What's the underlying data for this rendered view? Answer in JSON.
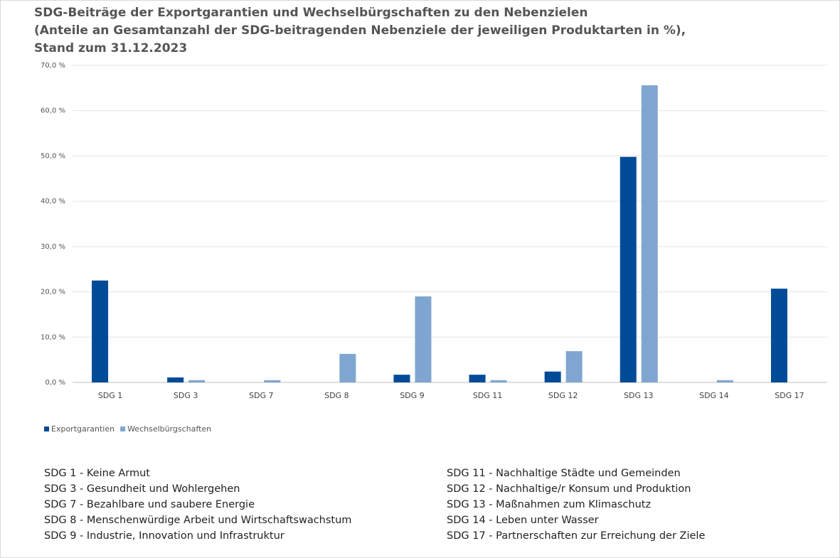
{
  "chart_data": {
    "type": "bar",
    "title": [
      "SDG-Beiträge der Exportgarantien und Wechselbürgschaften zu den Nebenzielen",
      "(Anteile an Gesamtanzahl der SDG-beitragenden Nebenziele der jeweiligen Produktarten in %),",
      "Stand zum 31.12.2023"
    ],
    "categories": [
      "SDG 1",
      "SDG 3",
      "SDG 7",
      "SDG 8",
      "SDG 9",
      "SDG 11",
      "SDG 12",
      "SDG 13",
      "SDG 14",
      "SDG 17"
    ],
    "series": [
      {
        "name": "Exportgarantien",
        "color": "#004b97",
        "values": [
          22.5,
          1.1,
          0,
          0,
          1.7,
          1.7,
          2.4,
          49.8,
          0,
          20.7
        ]
      },
      {
        "name": "Wechselbürgschaften",
        "color": "#7fa6d0",
        "values": [
          0,
          0.5,
          0.5,
          6.3,
          19.0,
          0.5,
          6.9,
          65.6,
          0.5,
          0
        ]
      }
    ],
    "ylim": [
      0,
      70
    ],
    "yticks": [
      {
        "value": 0,
        "label": "0,0 %"
      },
      {
        "value": 10,
        "label": "10,0 %"
      },
      {
        "value": 20,
        "label": "20,0 %"
      },
      {
        "value": 30,
        "label": "30,0 %"
      },
      {
        "value": 40,
        "label": "40,0 %"
      },
      {
        "value": 50,
        "label": "50,0 %"
      },
      {
        "value": 60,
        "label": "60,0 %"
      },
      {
        "value": 70,
        "label": "70,0 %"
      }
    ],
    "grid": true,
    "legend": "bottom-left",
    "annotations": [
      "SDG 1 - Keine Armut",
      "SDG 3 - Gesundheit und Wohlergehen",
      "SDG 7 - Bezahlbare und saubere Energie",
      "SDG 8 - Menschenwürdige Arbeit und Wirtschaftswachstum",
      "SDG 9 - Industrie, Innovation und Infrastruktur",
      "SDG 11 - Nachhaltige Städte und Gemeinden",
      "SDG 12 - Nachhaltige/r Konsum und Produktion",
      "SDG 13 - Maßnahmen zum Klimaschutz",
      "SDG 14 - Leben unter Wasser",
      "SDG 17 - Partnerschaften zur Erreichung der Ziele"
    ]
  }
}
